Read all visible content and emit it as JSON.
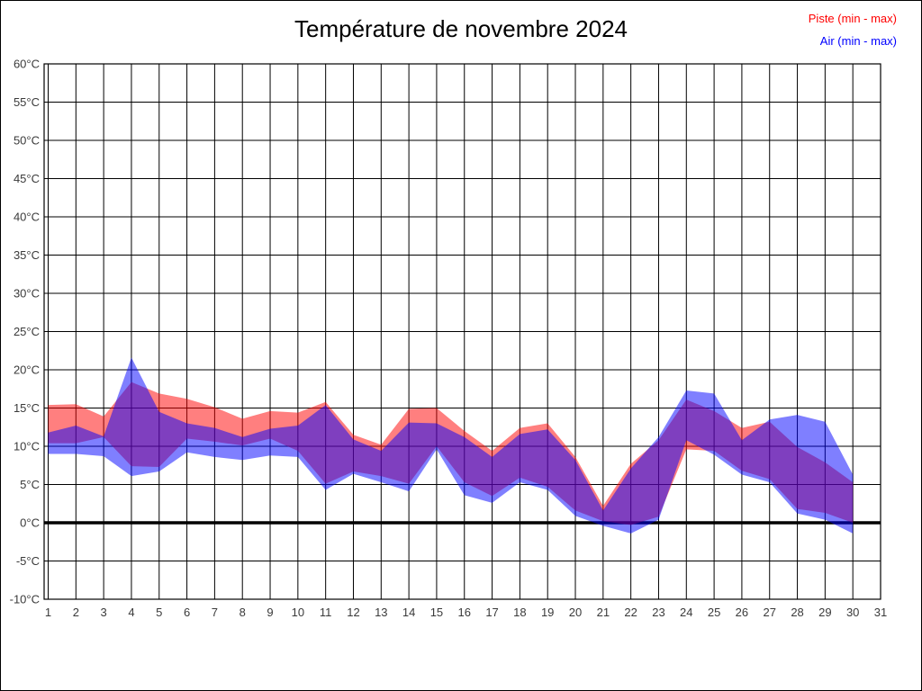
{
  "title": "Température de novembre 2024",
  "legend": {
    "piste": {
      "label": "Piste (min - max)",
      "color": "#ff0000"
    },
    "air": {
      "label": "Air (min - max)",
      "color": "#0000ff"
    }
  },
  "chart_data": {
    "type": "area",
    "subtype": "min-max-bands",
    "title": "Température de novembre 2024",
    "xlabel": "",
    "ylabel": "",
    "xlim": [
      1,
      31
    ],
    "ylim": [
      -10,
      60
    ],
    "grid": true,
    "zero_line": true,
    "legend_position": "top-right",
    "x_ticks": [
      "1",
      "2",
      "3",
      "4",
      "5",
      "6",
      "7",
      "8",
      "9",
      "10",
      "11",
      "12",
      "13",
      "14",
      "15",
      "16",
      "17",
      "18",
      "19",
      "20",
      "21",
      "22",
      "23",
      "24",
      "25",
      "26",
      "27",
      "28",
      "29",
      "30",
      "31"
    ],
    "y_ticks": [
      "60°C",
      "55°C",
      "50°C",
      "45°C",
      "40°C",
      "35°C",
      "30°C",
      "25°C",
      "20°C",
      "15°C",
      "10°C",
      "5°C",
      "0°C",
      "-5°C",
      "-10°C"
    ],
    "days": [
      1,
      2,
      3,
      4,
      5,
      6,
      7,
      8,
      9,
      10,
      11,
      12,
      13,
      14,
      15,
      16,
      17,
      18,
      19,
      20,
      21,
      22,
      23,
      24,
      25,
      26,
      27,
      28,
      29,
      30
    ],
    "series": [
      {
        "name": "Piste (min - max)",
        "band_name": "piste-band",
        "color": "#ff0000",
        "fill_opacity": 0.5,
        "min": [
          10.4,
          10.4,
          11.2,
          7.4,
          7.3,
          11.0,
          10.6,
          10.1,
          11.0,
          9.4,
          5.1,
          6.7,
          6.1,
          5.1,
          10.0,
          5.3,
          3.5,
          5.9,
          4.7,
          1.6,
          0.2,
          -0.3,
          0.8,
          9.6,
          9.4,
          6.8,
          5.7,
          1.8,
          1.3,
          0.0
        ],
        "max": [
          15.4,
          15.5,
          13.9,
          18.4,
          16.9,
          16.2,
          15.1,
          13.6,
          14.6,
          14.4,
          15.8,
          11.5,
          10.2,
          14.9,
          15.0,
          12.0,
          9.4,
          12.4,
          13.0,
          8.6,
          2.2,
          7.7,
          10.8,
          16.1,
          14.6,
          12.4,
          13.2,
          9.9,
          7.9,
          5.3
        ]
      },
      {
        "name": "Air (min - max)",
        "band_name": "air-band",
        "color": "#0000ff",
        "fill_opacity": 0.5,
        "min": [
          9.0,
          9.0,
          8.7,
          6.1,
          6.7,
          9.2,
          8.6,
          8.2,
          8.8,
          8.6,
          4.3,
          6.4,
          5.3,
          4.1,
          9.6,
          3.6,
          2.6,
          5.3,
          4.3,
          0.9,
          -0.4,
          -1.4,
          0.4,
          10.8,
          8.9,
          6.3,
          5.3,
          1.2,
          0.4,
          -1.4
        ],
        "max": [
          11.8,
          12.7,
          11.3,
          21.6,
          14.5,
          13.0,
          12.4,
          11.2,
          12.3,
          12.7,
          15.4,
          10.9,
          9.4,
          13.1,
          13.0,
          11.2,
          8.6,
          11.6,
          12.2,
          8.2,
          1.6,
          7.1,
          11.2,
          17.3,
          16.9,
          10.8,
          13.5,
          14.1,
          13.2,
          6.3
        ]
      }
    ]
  }
}
